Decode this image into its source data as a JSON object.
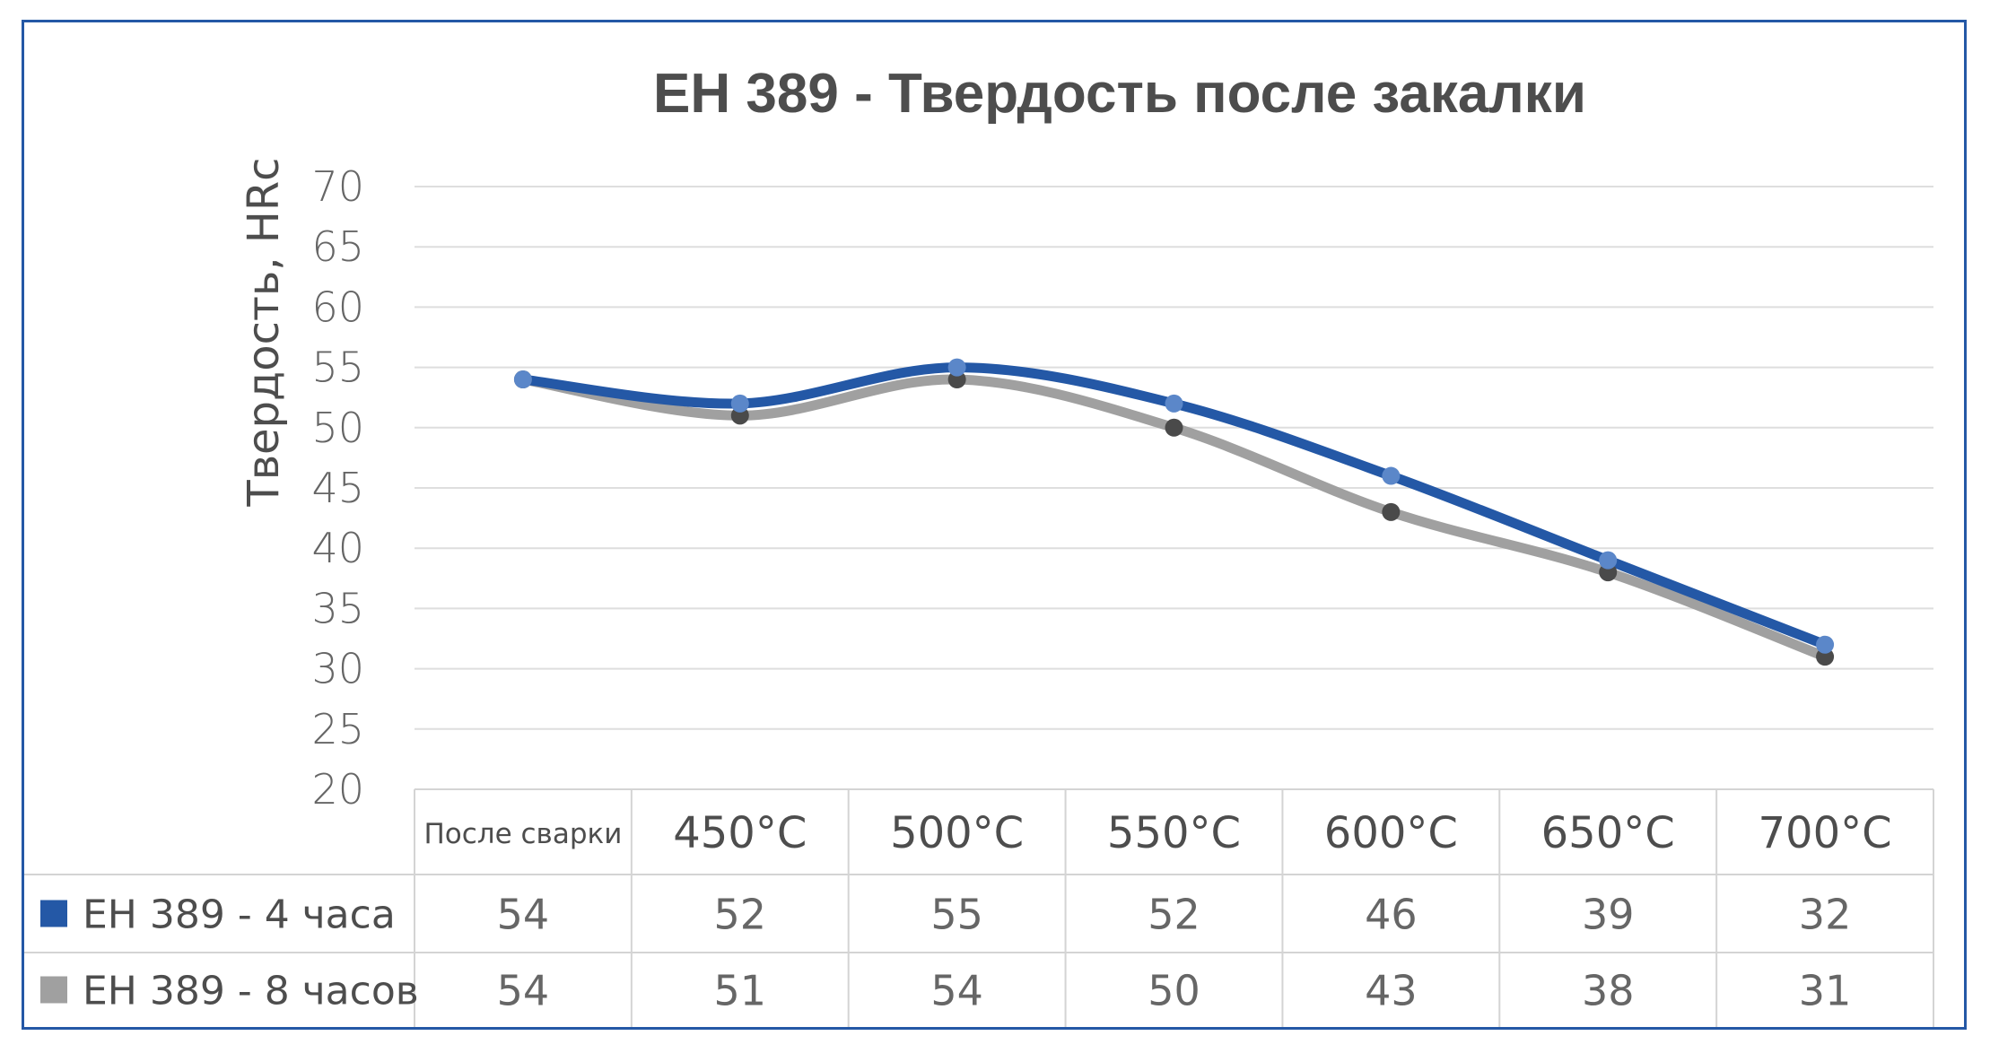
{
  "chart_data": {
    "type": "line",
    "title": "EH 389 - Твердость после закалки",
    "ylabel": "Твердость, HRc",
    "xlabel": "",
    "ylim": [
      20,
      70
    ],
    "yticks": [
      20,
      25,
      30,
      35,
      40,
      45,
      50,
      55,
      60,
      65,
      70
    ],
    "grid": true,
    "legend": "data-table-left",
    "categories": [
      "После сварки",
      "450°C",
      "500°C",
      "550°C",
      "600°C",
      "650°C",
      "700°C"
    ],
    "series": [
      {
        "name": "EH 389 - 4 часа",
        "values": [
          54,
          52,
          55,
          52,
          46,
          39,
          32
        ],
        "color": "#2458a6",
        "marker_color": "#5b87c9"
      },
      {
        "name": "EH 389 - 8 часов",
        "values": [
          54,
          51,
          54,
          50,
          43,
          38,
          31
        ],
        "color": "#a0a0a0",
        "marker_color": "#4a4a4a"
      }
    ]
  }
}
